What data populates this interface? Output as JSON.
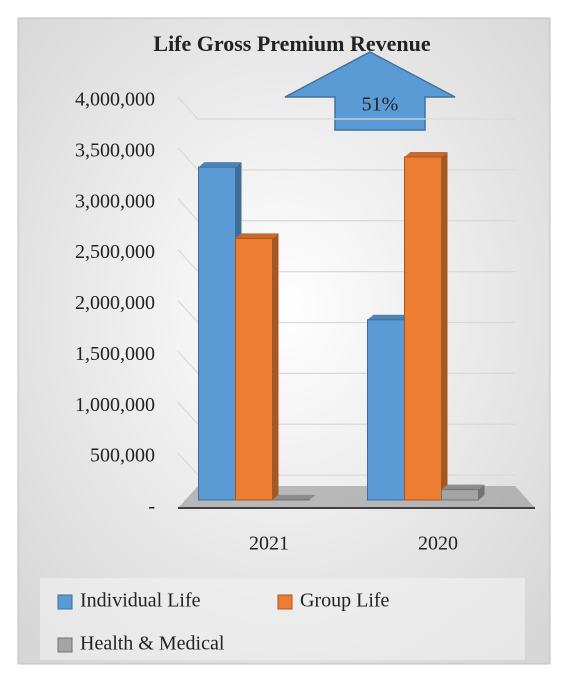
{
  "chart_data": {
    "type": "bar3d",
    "title": "Life Gross Premium Revenue",
    "annotation": "51%",
    "categories": [
      "2021",
      "2020"
    ],
    "series": [
      {
        "name": "Individual Life",
        "color": "#5b9bd5",
        "values": [
          3350000,
          1850000
        ]
      },
      {
        "name": "Group Life",
        "color": "#ed7d31",
        "values": [
          2650000,
          3450000
        ]
      },
      {
        "name": "Health & Medical",
        "color": "#a5a5a5",
        "values": [
          80000,
          180000
        ]
      }
    ],
    "ylim": [
      0,
      4000000
    ],
    "yticks": [
      {
        "value": 0,
        "label": "-"
      },
      {
        "value": 500000,
        "label": "500,000"
      },
      {
        "value": 1000000,
        "label": "1,000,000"
      },
      {
        "value": 1500000,
        "label": "1,500,000"
      },
      {
        "value": 2000000,
        "label": "2,000,000"
      },
      {
        "value": 2500000,
        "label": "2,500,000"
      },
      {
        "value": 3000000,
        "label": "3,000,000"
      },
      {
        "value": 3500000,
        "label": "3,500,000"
      },
      {
        "value": 4000000,
        "label": "4,000,000"
      }
    ],
    "grid": true,
    "legend": "bottom"
  }
}
